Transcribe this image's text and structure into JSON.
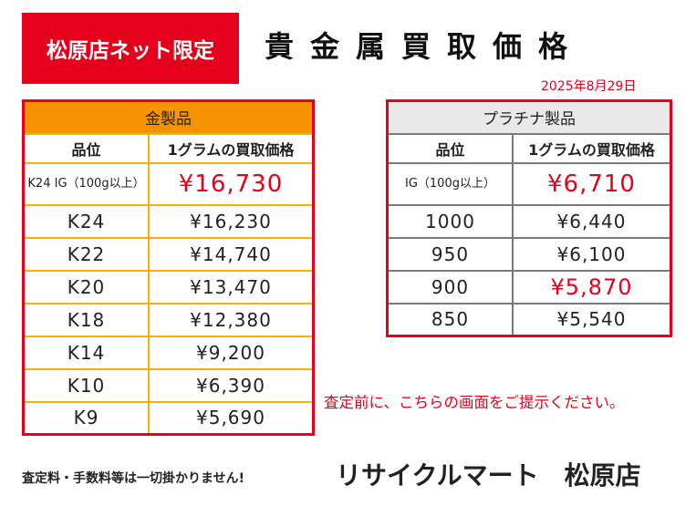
{
  "header": {
    "badge": "松原店ネット限定",
    "title": "貴金属買取価格",
    "date": "2025年8月29日"
  },
  "gold_table": {
    "category": "金製品",
    "col_grade": "品位",
    "col_price": "1グラムの買取価格",
    "rows": [
      {
        "grade": "K24 IG（100g以上）",
        "price": "¥16,730"
      },
      {
        "grade": "K24",
        "price": "¥16,230"
      },
      {
        "grade": "K22",
        "price": "¥14,740"
      },
      {
        "grade": "K20",
        "price": "¥13,470"
      },
      {
        "grade": "K18",
        "price": "¥12,380"
      },
      {
        "grade": "K14",
        "price": "¥9,200"
      },
      {
        "grade": "K10",
        "price": "¥6,390"
      },
      {
        "grade": "K9",
        "price": "¥5,690"
      }
    ]
  },
  "platinum_table": {
    "category": "プラチナ製品",
    "col_grade": "品位",
    "col_price": "1グラムの買取価格",
    "rows": [
      {
        "grade": "IG（100g以上）",
        "price": "¥6,710"
      },
      {
        "grade": "1000",
        "price": "¥6,440"
      },
      {
        "grade": "950",
        "price": "¥6,100"
      },
      {
        "grade": "900",
        "price": "¥5,870"
      },
      {
        "grade": "850",
        "price": "¥5,540"
      }
    ]
  },
  "note": "査定前に、こちらの画面をご提示ください。",
  "footer": {
    "fees": "査定料・手数料等は一切掛かりません!",
    "store": "リサイクルマート　松原店"
  },
  "colors": {
    "accent_red": "#e5001c",
    "gold_header": "#f59400",
    "gold_border": "#f2b400",
    "platinum_header": "#e9e9e9"
  }
}
